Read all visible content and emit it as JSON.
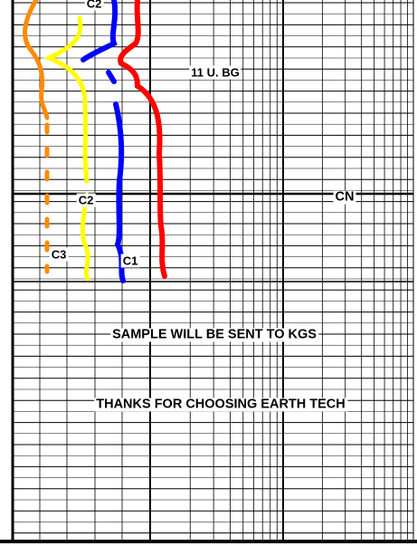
{
  "annotations": [
    {
      "text": "C2"
    },
    {
      "text": "11 U. BG"
    },
    {
      "text": "C2"
    },
    {
      "text": "CN"
    },
    {
      "text": "C3"
    },
    {
      "text": "C1"
    },
    {
      "text": "SAMPLE WILL BE SENT TO KGS"
    },
    {
      "text": "THANKS FOR CHOOSING EARTH TECH"
    }
  ]
}
